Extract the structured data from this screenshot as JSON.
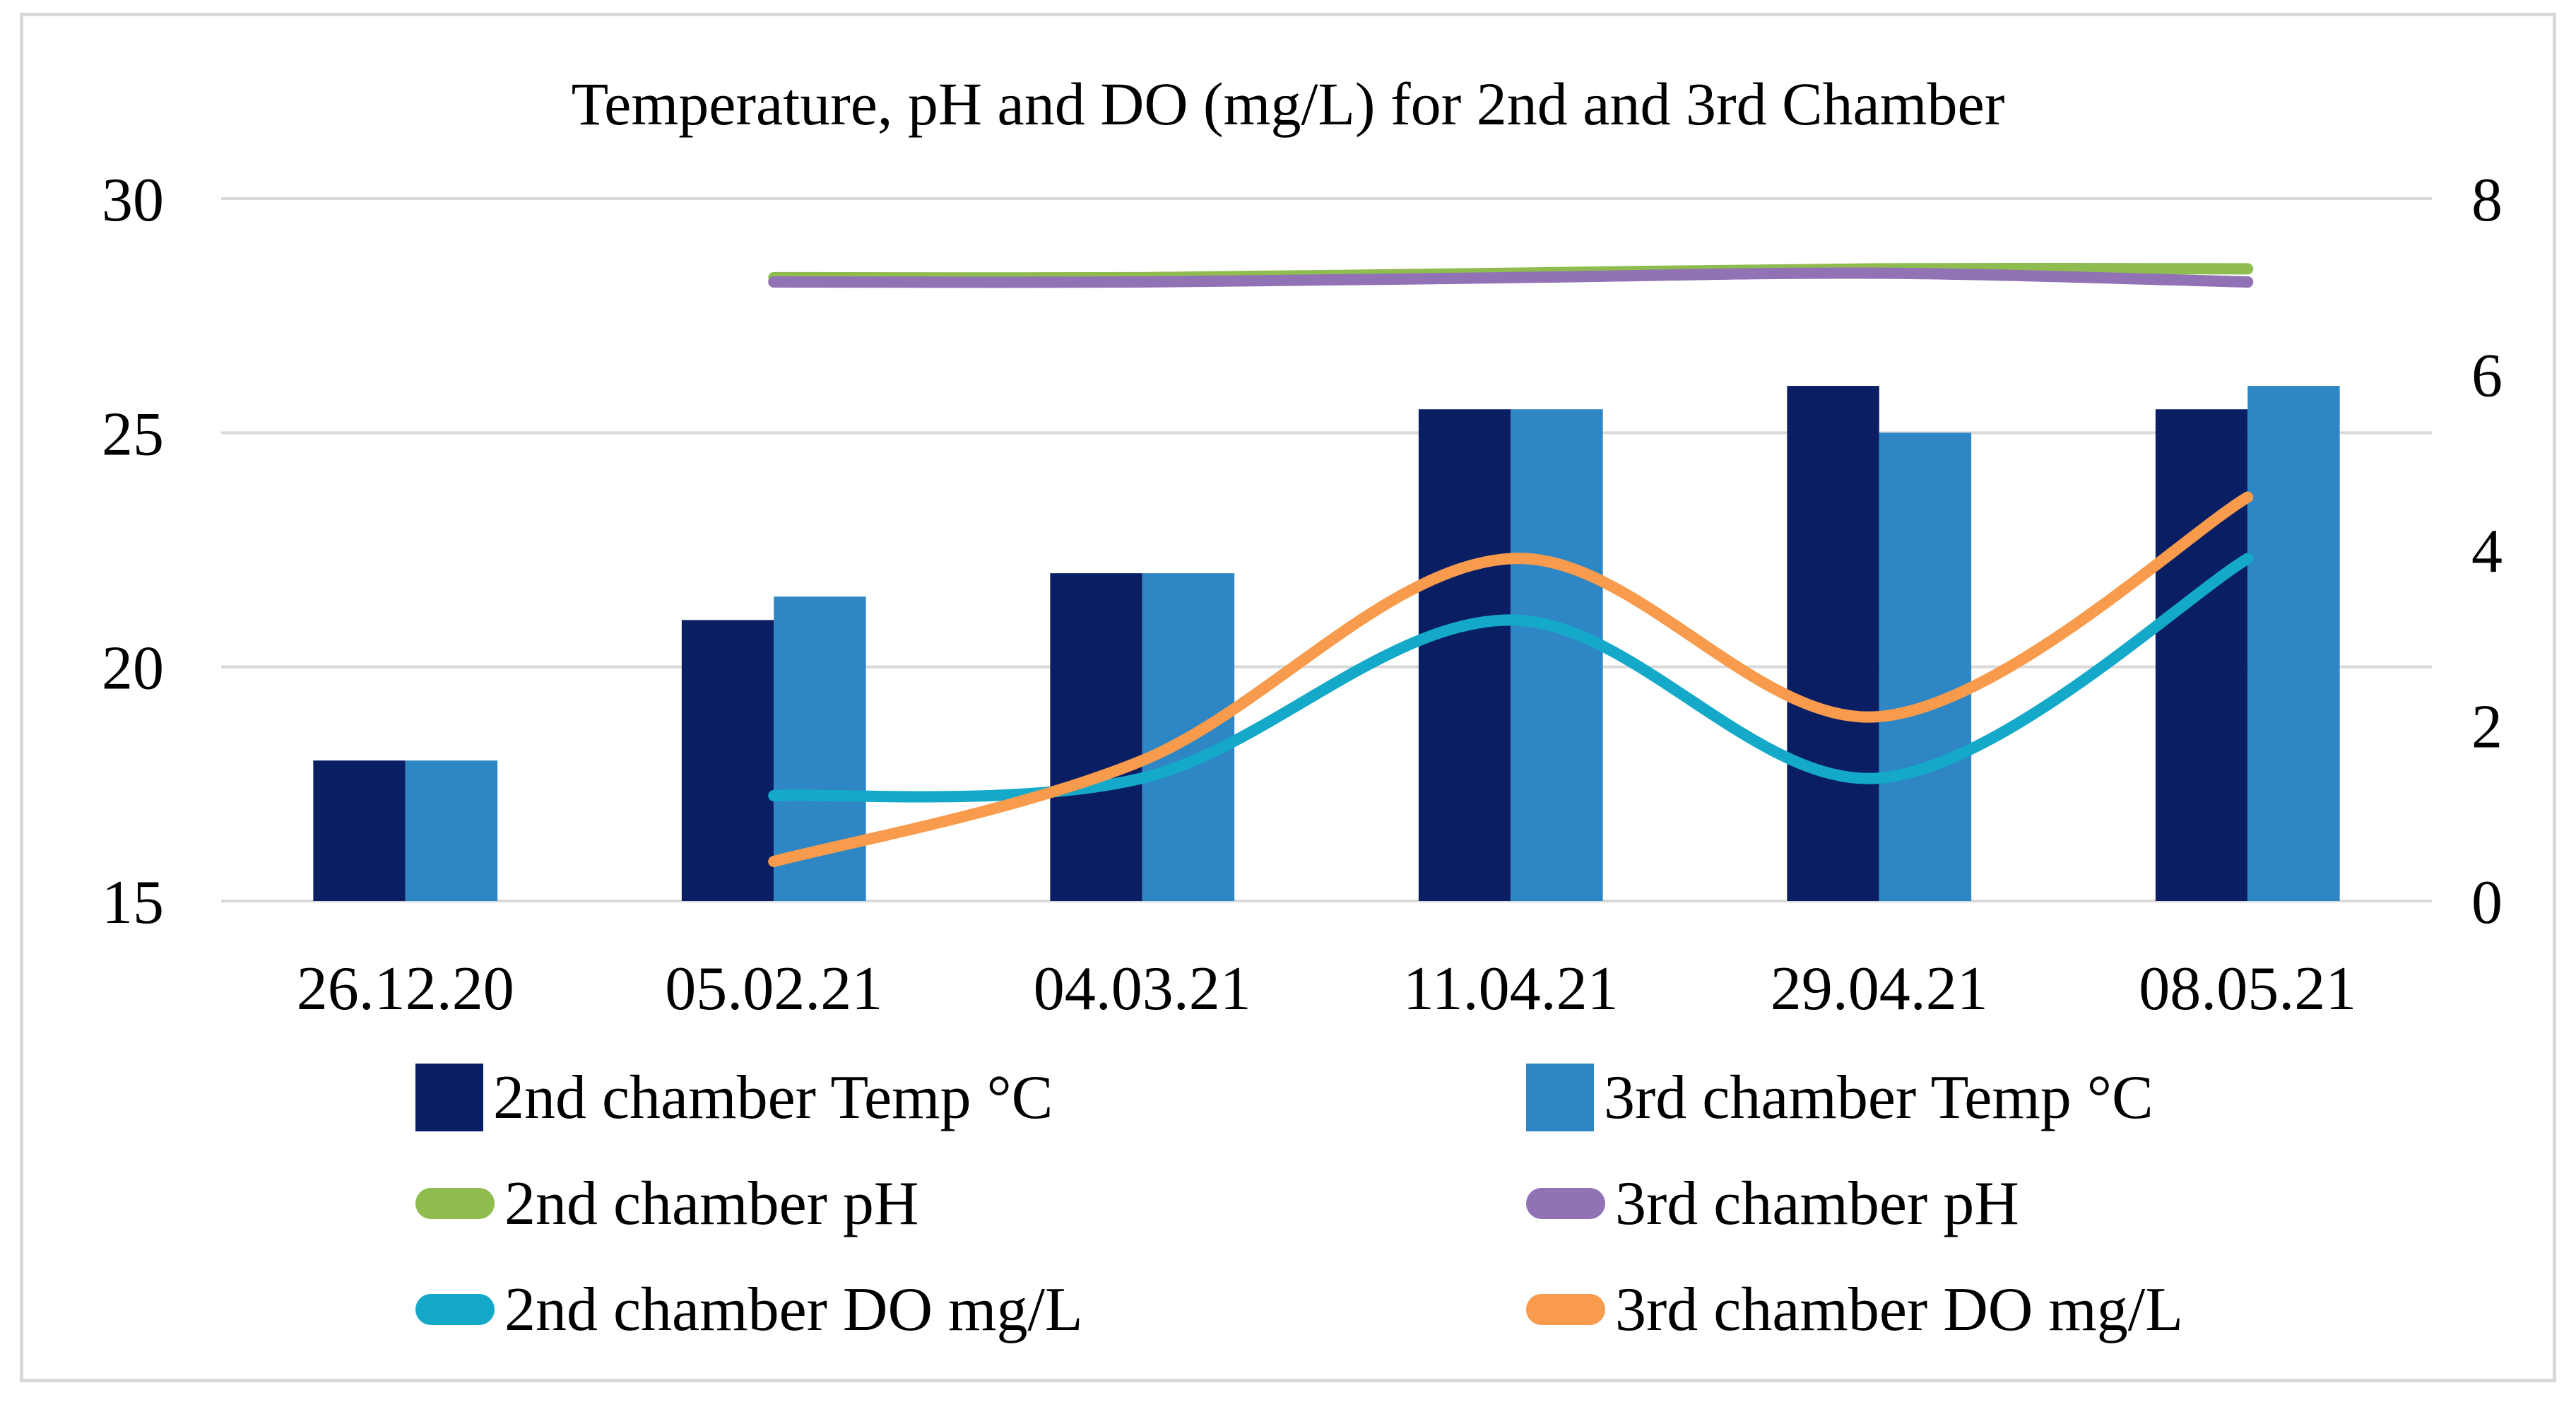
{
  "chart_data": {
    "type": "combo-bar-line",
    "title": "Temperature, pH and DO (mg/L) for 2nd and 3rd Chamber",
    "categories": [
      "26.12.20",
      "05.02.21",
      "04.03.21",
      "11.04.21",
      "29.04.21",
      "08.05.21"
    ],
    "axes": {
      "left": {
        "min": 15,
        "max": 30,
        "ticks": [
          30,
          25,
          20,
          15
        ],
        "grid": true
      },
      "right": {
        "min": 0,
        "max": 8,
        "ticks": [
          8,
          6,
          4,
          2,
          0
        ],
        "grid": false
      }
    },
    "bar_series": [
      {
        "name": "2nd chamber Temp °C",
        "axis": "left",
        "color": "#0a1f63",
        "values": [
          18,
          21,
          22,
          25.5,
          26,
          25.5
        ]
      },
      {
        "name": "3rd chamber Temp °C",
        "axis": "left",
        "color": "#2e86c5",
        "values": [
          18,
          21.5,
          22,
          25.5,
          25,
          26
        ]
      }
    ],
    "line_series": [
      {
        "name": "2nd chamber pH",
        "axis": "right",
        "color": "#8fbc4f",
        "smooth": true,
        "values": [
          null,
          7.1,
          7.1,
          7.15,
          7.2,
          7.2
        ]
      },
      {
        "name": "3rd chamber pH",
        "axis": "right",
        "color": "#9173b5",
        "smooth": true,
        "values": [
          null,
          7.05,
          7.05,
          7.1,
          7.15,
          7.05
        ]
      },
      {
        "name": "2nd chamber DO mg/L",
        "axis": "right",
        "color": "#14a9c9",
        "smooth": true,
        "values": [
          null,
          1.2,
          1.4,
          3.2,
          1.4,
          3.9
        ]
      },
      {
        "name": "3rd chamber DO mg/L",
        "axis": "right",
        "color": "#f89b4c",
        "smooth": true,
        "values": [
          null,
          0.45,
          1.6,
          3.9,
          2.1,
          4.6
        ]
      }
    ],
    "legend_position": "bottom"
  },
  "colors": {
    "gridline": "#d9d9d9",
    "frame_border": "#d9d9d9",
    "text": "#000000",
    "background": "#ffffff"
  }
}
